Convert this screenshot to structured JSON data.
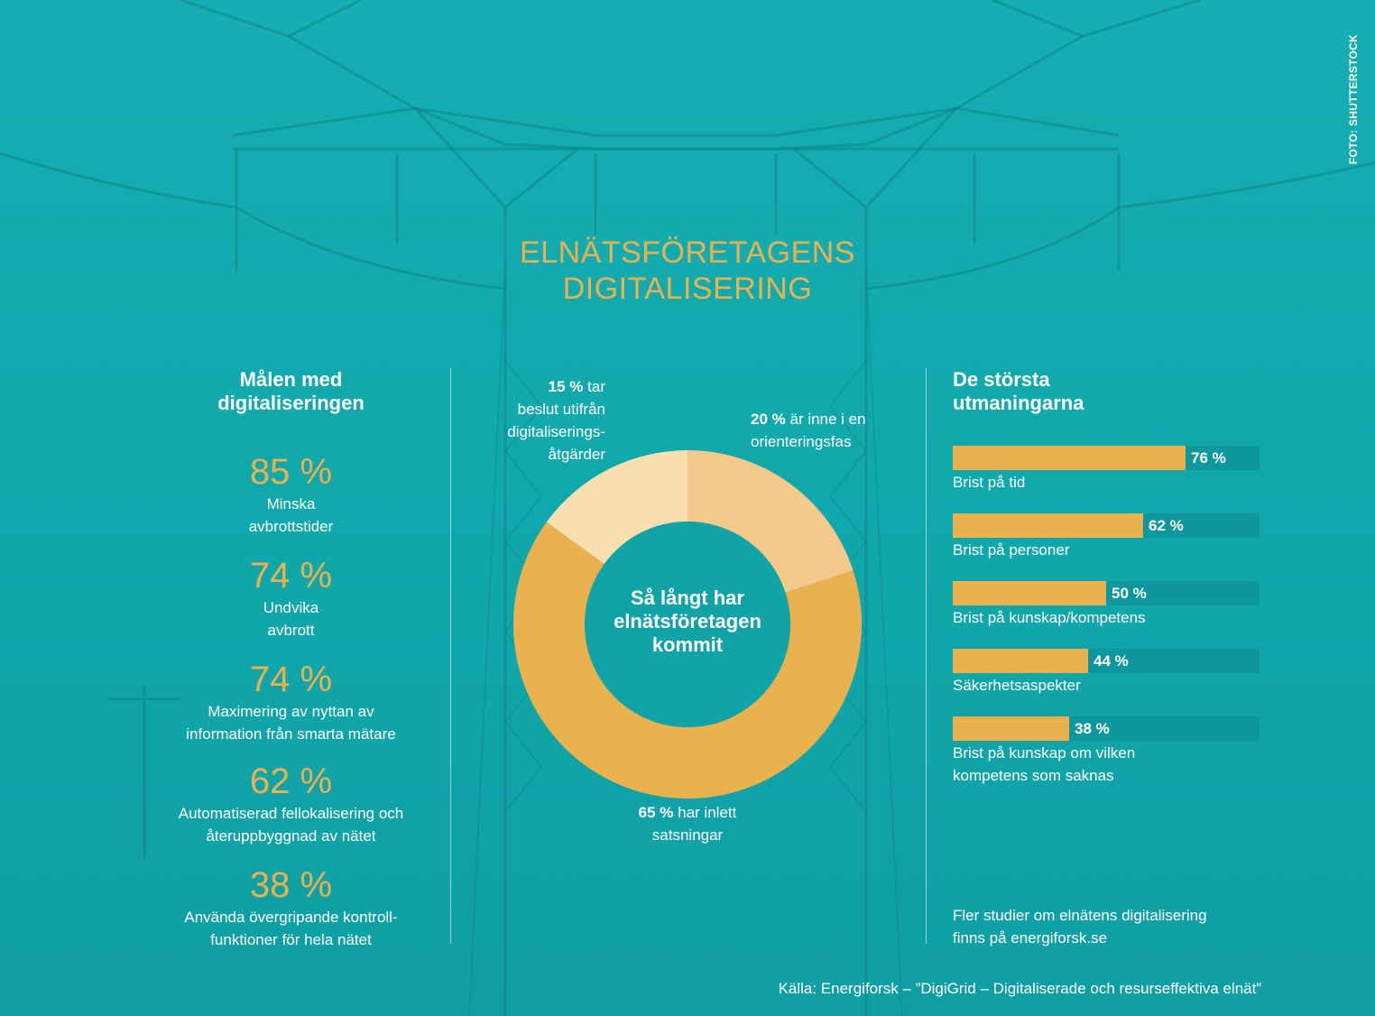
{
  "photo_credit": "FOTO: SHUTTERSTOCK",
  "title": {
    "line1": "ELNÄTSFÖRETAGENS",
    "line2": "DIGITALISERING"
  },
  "goals": {
    "heading": "Målen med\ndigitaliseringen",
    "items": [
      {
        "pct": "85 %",
        "desc": "Minska\navbrottstider"
      },
      {
        "pct": "74 %",
        "desc": "Undvika\navbrott"
      },
      {
        "pct": "74 %",
        "desc": "Maximering av nyttan av\ninformation från smarta mätare"
      },
      {
        "pct": "62 %",
        "desc": "Automatiserad fellokalisering och\nåteruppbyggnad av nätet"
      },
      {
        "pct": "38 %",
        "desc": "Använda övergripande kontroll-\nfunktioner för hela nätet"
      }
    ]
  },
  "chart_data": [
    {
      "type": "pie",
      "center_label": "Så långt har\nelnätsföretagen\nkommit",
      "slices": [
        {
          "value": 20,
          "pct": "20 %",
          "rest": "är inne i en",
          "rest2": "orienteringsfas",
          "color": "#f5c98a"
        },
        {
          "value": 65,
          "pct": "65 %",
          "rest": "har inlett",
          "rest2": "satsningar",
          "color": "#eab24f"
        },
        {
          "value": 15,
          "pct": "15 %",
          "rest": "tar",
          "rest2": "beslut utifrån\ndigitaliserings-\nåtgärder",
          "color": "#f8dfb0"
        }
      ]
    },
    {
      "type": "bar",
      "title": "De största\nutmaningarna",
      "max": 100,
      "bars": [
        {
          "value": 76,
          "label_value": "76 %",
          "label": "Brist på tid"
        },
        {
          "value": 62,
          "label_value": "62 %",
          "label": "Brist på personer"
        },
        {
          "value": 50,
          "label_value": "50 %",
          "label": "Brist på kunskap/kompetens"
        },
        {
          "value": 44,
          "label_value": "44 %",
          "label": "Säkerhetsaspekter"
        },
        {
          "value": 38,
          "label_value": "38 %",
          "label": "Brist på kunskap om vilken\nkompetens som saknas"
        }
      ]
    }
  ],
  "more_info": "Fler studier om elnätens digitalisering\nfinns på energiforsk.se",
  "source": "Källa: Energiforsk – ”DigiGrid – Digitaliserade och resurseffektiva elnät”",
  "colors": {
    "background": "#12aaae",
    "accent": "#eab24f",
    "track": "#0e979c",
    "donut_hole": "#12a3a7"
  }
}
